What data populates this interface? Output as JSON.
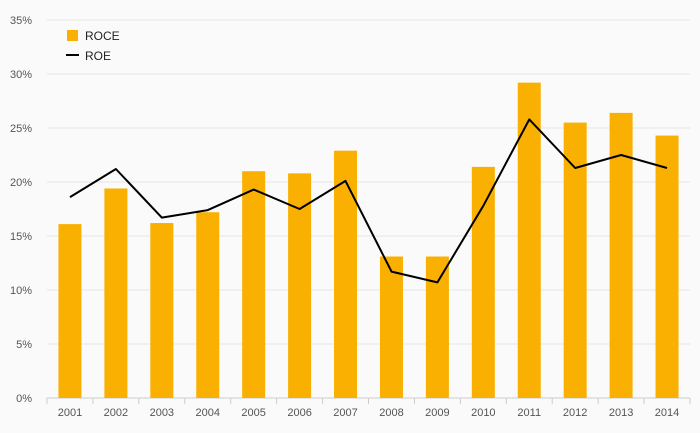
{
  "chart_data": {
    "type": "bar",
    "categories": [
      "2001",
      "2002",
      "2003",
      "2004",
      "2005",
      "2006",
      "2007",
      "2008",
      "2009",
      "2010",
      "2011",
      "2012",
      "2013",
      "2014"
    ],
    "series": [
      {
        "name": "ROCE",
        "type": "bar",
        "color": "#F9B000",
        "values": [
          16.1,
          19.4,
          16.2,
          17.2,
          21.0,
          20.8,
          22.9,
          13.1,
          13.1,
          21.4,
          29.2,
          25.5,
          26.4,
          24.3
        ]
      },
      {
        "name": "ROE",
        "type": "line",
        "color": "#000000",
        "values": [
          18.6,
          21.2,
          16.7,
          17.4,
          19.3,
          17.5,
          20.1,
          11.7,
          10.7,
          17.8,
          25.8,
          21.3,
          22.5,
          21.3
        ]
      }
    ],
    "y_ticks": [
      "0%",
      "5%",
      "10%",
      "15%",
      "20%",
      "25%",
      "30%",
      "35%"
    ],
    "ylim": [
      0,
      35
    ],
    "y_unit": "%",
    "grid": true,
    "legend_position": "top-left"
  }
}
